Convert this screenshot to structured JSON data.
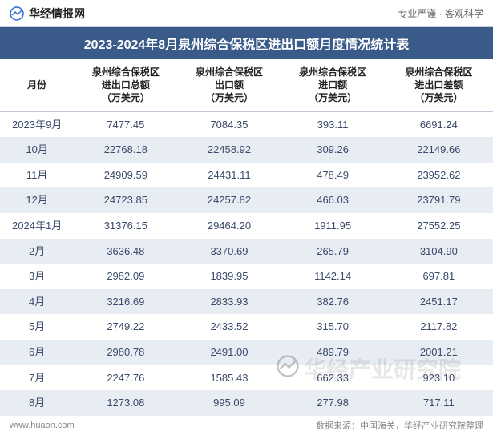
{
  "header": {
    "logo_text": "华经情报网",
    "motto": "专业严谨 · 客观科学"
  },
  "title": "2023-2024年8月泉州综合保税区进出口额月度情况统计表",
  "table": {
    "columns": [
      "月份",
      "泉州综合保税区\n进出口总额\n（万美元）",
      "泉州综合保税区\n出口额\n（万美元）",
      "泉州综合保税区\n进口额\n（万美元）",
      "泉州综合保税区\n进出口差额\n（万美元）"
    ],
    "rows": [
      [
        "2023年9月",
        "7477.45",
        "7084.35",
        "393.11",
        "6691.24"
      ],
      [
        "10月",
        "22768.18",
        "22458.92",
        "309.26",
        "22149.66"
      ],
      [
        "11月",
        "24909.59",
        "24431.11",
        "478.49",
        "23952.62"
      ],
      [
        "12月",
        "24723.85",
        "24257.82",
        "466.03",
        "23791.79"
      ],
      [
        "2024年1月",
        "31376.15",
        "29464.20",
        "1911.95",
        "27552.25"
      ],
      [
        "2月",
        "3636.48",
        "3370.69",
        "265.79",
        "3104.90"
      ],
      [
        "3月",
        "2982.09",
        "1839.95",
        "1142.14",
        "697.81"
      ],
      [
        "4月",
        "3216.69",
        "2833.93",
        "382.76",
        "2451.17"
      ],
      [
        "5月",
        "2749.22",
        "2433.52",
        "315.70",
        "2117.82"
      ],
      [
        "6月",
        "2980.78",
        "2491.00",
        "489.79",
        "2001.21"
      ],
      [
        "7月",
        "2247.76",
        "1585.43",
        "662.33",
        "923.10"
      ],
      [
        "8月",
        "1273.08",
        "995.09",
        "277.98",
        "717.11"
      ]
    ]
  },
  "footer": {
    "url": "www.huaon.com",
    "source": "数据来源：中国海关，华经产业研究院整理"
  },
  "watermark": {
    "text": "华经产业研究院"
  },
  "colors": {
    "title_bg": "#3a5a8a",
    "title_fg": "#ffffff",
    "row_even_bg": "#e8ecf3",
    "row_odd_bg": "#ffffff",
    "cell_text": "#3a4a6a",
    "header_text": "#222222",
    "border": "#c0c8d8"
  }
}
